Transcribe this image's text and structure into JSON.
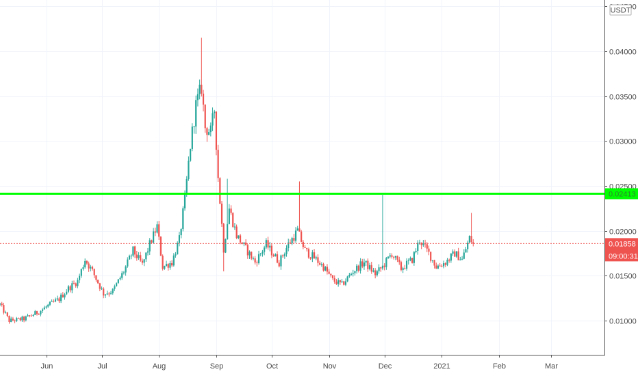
{
  "chart_data": {
    "type": "candlestick",
    "currency": "USDT",
    "y_ticks": [
      "0.01000",
      "0.01500",
      "0.02000",
      "0.02500",
      "0.03000",
      "0.03500",
      "0.04000",
      "0.04500"
    ],
    "y_tick_values": [
      0.01,
      0.015,
      0.02,
      0.025,
      0.03,
      0.035,
      0.04,
      0.045
    ],
    "ylim": [
      0.0062,
      0.0457
    ],
    "x_ticks": [
      "Jun",
      "Jul",
      "Aug",
      "Sep",
      "Oct",
      "Nov",
      "Dec",
      "2021",
      "Feb",
      "Mar"
    ],
    "x_tick_dates": [
      "2020-06-01",
      "2020-07-01",
      "2020-08-01",
      "2020-09-01",
      "2020-10-01",
      "2020-11-01",
      "2020-12-01",
      "2021-01-01",
      "2021-02-01",
      "2021-03-01"
    ],
    "xlim": [
      "2020-05-07",
      "2021-03-30"
    ],
    "grid": true,
    "up_color": "#26a69a",
    "down_color": "#ef5350",
    "horizontal_line": {
      "value": 0.02413,
      "label": "0.02413",
      "color": "#00ff00"
    },
    "last_price": {
      "value": 0.01858,
      "label": "0.01858",
      "countdown": "09:00:31",
      "color": "#ef5350"
    },
    "price_path": [
      [
        "2020-05-07",
        0.0118
      ],
      [
        "2020-05-12",
        0.01
      ],
      [
        "2020-05-20",
        0.0102
      ],
      [
        "2020-05-28",
        0.011
      ],
      [
        "2020-06-03",
        0.0118
      ],
      [
        "2020-06-08",
        0.0124
      ],
      [
        "2020-06-13",
        0.0136
      ],
      [
        "2020-06-18",
        0.0144
      ],
      [
        "2020-06-22",
        0.0168
      ],
      [
        "2020-06-26",
        0.0155
      ],
      [
        "2020-07-02",
        0.013
      ],
      [
        "2020-07-07",
        0.0133
      ],
      [
        "2020-07-13",
        0.0155
      ],
      [
        "2020-07-18",
        0.0178
      ],
      [
        "2020-07-23",
        0.0162
      ],
      [
        "2020-07-27",
        0.0185
      ],
      [
        "2020-07-31",
        0.0205
      ],
      [
        "2020-08-03",
        0.016
      ],
      [
        "2020-08-08",
        0.0165
      ],
      [
        "2020-08-12",
        0.019
      ],
      [
        "2020-08-15",
        0.0235
      ],
      [
        "2020-08-18",
        0.0295
      ],
      [
        "2020-08-21",
        0.034
      ],
      [
        "2020-08-24",
        0.036
      ],
      [
        "2020-08-26",
        0.0315
      ],
      [
        "2020-08-29",
        0.031
      ],
      [
        "2020-08-31",
        0.0335
      ],
      [
        "2020-09-02",
        0.026
      ],
      [
        "2020-09-05",
        0.018
      ],
      [
        "2020-09-08",
        0.0225
      ],
      [
        "2020-09-12",
        0.0195
      ],
      [
        "2020-09-17",
        0.018
      ],
      [
        "2020-09-22",
        0.0165
      ],
      [
        "2020-09-28",
        0.0185
      ],
      [
        "2020-10-05",
        0.0165
      ],
      [
        "2020-10-10",
        0.0185
      ],
      [
        "2020-10-15",
        0.02
      ],
      [
        "2020-10-19",
        0.0178
      ],
      [
        "2020-10-24",
        0.017
      ],
      [
        "2020-10-29",
        0.016
      ],
      [
        "2020-11-03",
        0.0145
      ],
      [
        "2020-11-08",
        0.014
      ],
      [
        "2020-11-14",
        0.0155
      ],
      [
        "2020-11-20",
        0.0165
      ],
      [
        "2020-11-26",
        0.0152
      ],
      [
        "2020-11-30",
        0.016
      ],
      [
        "2020-12-05",
        0.0175
      ],
      [
        "2020-12-10",
        0.0158
      ],
      [
        "2020-12-16",
        0.0168
      ],
      [
        "2020-12-20",
        0.019
      ],
      [
        "2020-12-25",
        0.0175
      ],
      [
        "2020-12-29",
        0.016
      ],
      [
        "2021-01-03",
        0.0165
      ],
      [
        "2021-01-08",
        0.0175
      ],
      [
        "2021-01-12",
        0.0168
      ],
      [
        "2021-01-16",
        0.0192
      ],
      [
        "2021-01-18",
        0.0186
      ]
    ],
    "wick_spikes": [
      [
        "2020-08-24",
        0.0415
      ],
      [
        "2020-09-07",
        0.0258
      ],
      [
        "2020-10-16",
        0.0255
      ],
      [
        "2020-11-30",
        0.024
      ],
      [
        "2021-01-17",
        0.022
      ],
      [
        "2020-09-05",
        0.0155
      ]
    ]
  }
}
